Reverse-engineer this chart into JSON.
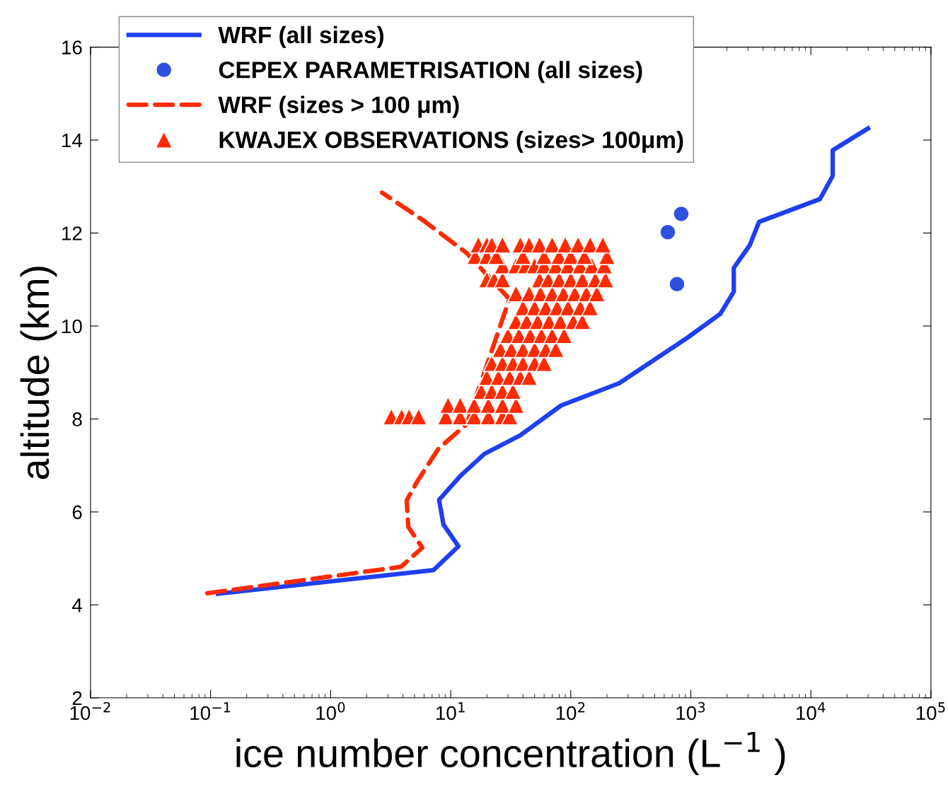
{
  "chart_data": {
    "type": "line",
    "xlabel": "ice number concentration (L$^{−1}$ )",
    "ylabel": "altitude (km)",
    "log": "x",
    "xlim": [
      0.01,
      100000
    ],
    "ylim": [
      2,
      16
    ],
    "xticks": [
      {
        "value": 0.01,
        "label": "10$^{−2}$"
      },
      {
        "value": 0.1,
        "label": "10$^{−1}$"
      },
      {
        "value": 1,
        "label": "10$^{0}$"
      },
      {
        "value": 10,
        "label": "10$^{1}$"
      },
      {
        "value": 100,
        "label": "10$^{2}$"
      },
      {
        "value": 1000,
        "label": "10$^{3}$"
      },
      {
        "value": 10000,
        "label": "10$^{4}$"
      },
      {
        "value": 100000,
        "label": "10$^{5}$"
      }
    ],
    "yticks": [
      2,
      4,
      6,
      8,
      10,
      12,
      14,
      16
    ],
    "grid": false,
    "legend": "top left",
    "series": [
      {
        "name": "WRF (all sizes)",
        "color": "#1f3ff0",
        "line_style": "solid",
        "marker": "none",
        "x": [
          0.115,
          7.2,
          11.6,
          8.7,
          8.0,
          12.2,
          19.1,
          38,
          83,
          253,
          940,
          1760,
          2280,
          2280,
          3100,
          3700,
          11900,
          15200,
          15200,
          29900
        ],
        "values": [
          4.24,
          4.75,
          5.26,
          5.73,
          6.26,
          6.79,
          7.25,
          7.65,
          8.29,
          8.77,
          9.75,
          10.26,
          10.74,
          11.25,
          11.74,
          12.24,
          12.73,
          13.23,
          13.78,
          14.25
        ]
      },
      {
        "name": "CEPEX PARAMETRISATION (all sizes)",
        "type": "scatter",
        "color": "#3050e0",
        "marker": "circle",
        "x": [
          832,
          643,
          767
        ],
        "values": [
          12.41,
          12.02,
          10.9
        ]
      },
      {
        "name": "WRF (sizes > 100 μm)",
        "color": "#ff2a00",
        "line_style": "dashed",
        "marker": "none",
        "x": [
          0.094,
          3.86,
          5.8,
          4.43,
          4.3,
          5.3,
          7.9,
          13.6,
          30.8,
          13.6,
          6.0,
          2.68
        ],
        "values": [
          4.25,
          4.82,
          5.23,
          5.68,
          6.25,
          6.67,
          7.36,
          7.89,
          10.58,
          11.57,
          12.26,
          12.87
        ]
      },
      {
        "name": "KWAJEX OBSERVATIONS (sizes> 100μm)",
        "type": "scatter",
        "color": "#ff2a00",
        "marker": "triangle",
        "x": [
          3.2,
          3.9,
          4.5,
          5.4,
          9.1,
          12,
          15.7,
          20.6,
          27,
          31,
          9.5,
          12,
          15.7,
          20.6,
          27,
          35,
          18,
          22,
          27,
          33,
          20,
          25,
          31,
          38,
          45,
          22,
          27,
          33,
          40,
          50,
          60,
          26,
          32,
          40,
          50,
          62,
          75,
          30,
          37,
          46,
          57,
          70,
          88,
          35,
          43,
          53,
          66,
          82,
          105,
          125,
          40,
          50,
          62,
          77,
          95,
          120,
          145,
          35,
          45,
          56,
          70,
          87,
          108,
          135,
          165,
          20,
          23,
          27,
          55,
          65,
          80,
          100,
          125,
          160,
          195,
          27,
          35,
          42,
          50,
          60,
          75,
          95,
          120,
          150,
          190,
          16,
          20,
          24,
          40,
          60,
          80,
          100,
          130,
          200,
          17,
          20,
          22,
          27,
          38,
          45,
          55,
          70,
          90,
          115,
          145,
          185
        ],
        "values": [
          8.05,
          8.05,
          8.05,
          8.05,
          8.05,
          8.05,
          8.05,
          8.05,
          8.05,
          8.05,
          8.3,
          8.3,
          8.3,
          8.3,
          8.3,
          8.3,
          8.6,
          8.6,
          8.6,
          8.6,
          8.9,
          8.9,
          8.9,
          8.9,
          8.9,
          9.2,
          9.2,
          9.2,
          9.2,
          9.2,
          9.2,
          9.5,
          9.5,
          9.5,
          9.5,
          9.5,
          9.5,
          9.8,
          9.8,
          9.8,
          9.8,
          9.8,
          9.8,
          10.1,
          10.1,
          10.1,
          10.1,
          10.1,
          10.1,
          10.1,
          10.4,
          10.4,
          10.4,
          10.4,
          10.4,
          10.4,
          10.4,
          10.7,
          10.7,
          10.7,
          10.7,
          10.7,
          10.7,
          10.7,
          10.7,
          11.0,
          11.0,
          11.0,
          11.0,
          11.0,
          11.0,
          11.0,
          11.0,
          11.0,
          11.0,
          11.3,
          11.3,
          11.3,
          11.3,
          11.3,
          11.3,
          11.3,
          11.3,
          11.3,
          11.3,
          11.5,
          11.5,
          11.5,
          11.5,
          11.5,
          11.5,
          11.5,
          11.5,
          11.5,
          11.75,
          11.75,
          11.75,
          11.75,
          11.75,
          11.75,
          11.75,
          11.75,
          11.75,
          11.75,
          11.75,
          11.75
        ]
      }
    ]
  }
}
